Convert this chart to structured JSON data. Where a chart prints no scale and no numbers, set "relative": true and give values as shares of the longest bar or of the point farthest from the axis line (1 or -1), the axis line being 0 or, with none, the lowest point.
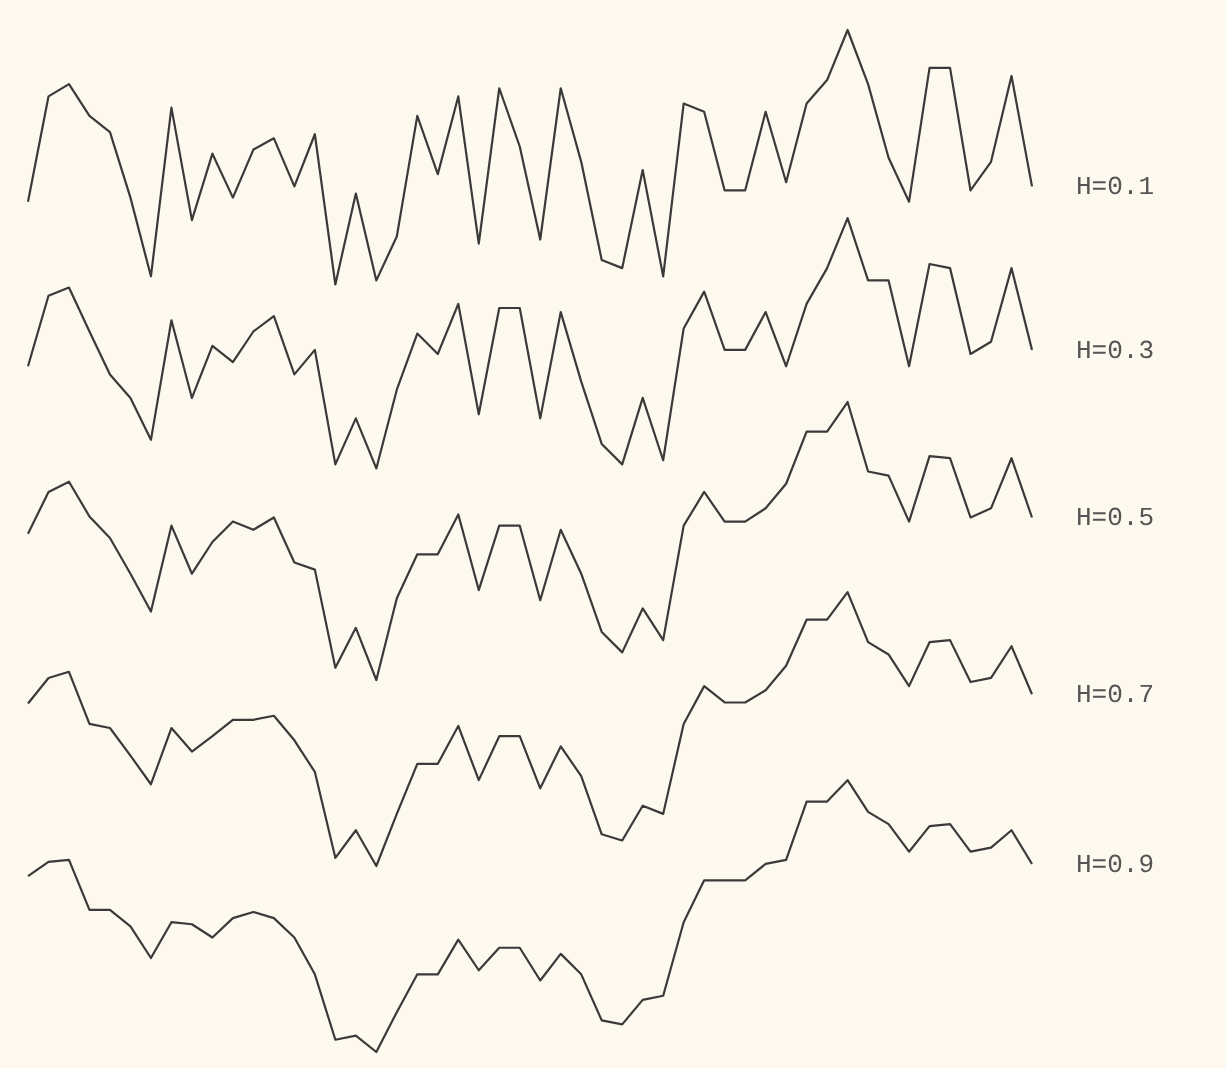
{
  "chart_data": {
    "type": "line",
    "relative": true,
    "tick_labels": false,
    "categories": [
      null,
      null,
      null,
      null,
      null,
      null,
      null,
      null,
      null,
      null,
      null,
      null,
      null,
      null,
      null,
      null,
      null,
      null,
      null,
      null,
      null,
      null,
      null,
      null,
      null,
      null,
      null,
      null,
      null,
      null,
      null,
      null,
      null,
      null,
      null,
      null,
      null,
      null,
      null,
      null,
      null,
      null,
      null,
      null,
      null,
      null,
      null,
      null,
      null,
      null
    ],
    "series": [
      {
        "name": "H=0.1",
        "color": "#3a3a3a",
        "values": [
          0.832,
          0.935,
          0.947,
          0.916,
          0.9,
          0.836,
          0.759,
          0.924,
          0.814,
          0.879,
          0.836,
          0.883,
          0.894,
          0.847,
          0.898,
          0.751,
          0.84,
          0.755,
          0.798,
          0.916,
          0.859,
          0.935,
          0.791,
          0.943,
          0.886,
          0.795,
          0.943,
          0.871,
          0.775,
          0.767,
          0.863,
          0.759,
          0.928,
          0.92,
          0.843,
          0.843,
          0.92,
          0.851,
          0.928,
          0.951,
          1,
          0.947,
          0.875,
          0.832,
          0.963,
          0.963,
          0.843,
          0.871,
          0.955,
          0.847
        ]
      },
      {
        "name": "H=0.3",
        "color": "#3a3a3a",
        "values": [
          0.671,
          0.74,
          0.748,
          0.705,
          0.663,
          0.64,
          0.599,
          0.716,
          0.64,
          0.691,
          0.675,
          0.705,
          0.72,
          0.663,
          0.687,
          0.575,
          0.62,
          0.571,
          0.648,
          0.703,
          0.683,
          0.732,
          0.624,
          0.728,
          0.728,
          0.62,
          0.724,
          0.656,
          0.595,
          0.575,
          0.64,
          0.579,
          0.708,
          0.744,
          0.687,
          0.687,
          0.724,
          0.671,
          0.732,
          0.767,
          0.816,
          0.755,
          0.755,
          0.671,
          0.771,
          0.767,
          0.683,
          0.695,
          0.767,
          0.687
        ]
      },
      {
        "name": "H=0.5",
        "color": "#3a3a3a",
        "values": [
          0.507,
          0.548,
          0.558,
          0.524,
          0.503,
          0.468,
          0.431,
          0.515,
          0.468,
          0.499,
          0.519,
          0.511,
          0.523,
          0.479,
          0.472,
          0.376,
          0.415,
          0.364,
          0.444,
          0.487,
          0.487,
          0.526,
          0.452,
          0.515,
          0.515,
          0.442,
          0.511,
          0.468,
          0.411,
          0.391,
          0.434,
          0.403,
          0.515,
          0.548,
          0.519,
          0.519,
          0.532,
          0.556,
          0.607,
          0.607,
          0.636,
          0.568,
          0.564,
          0.519,
          0.583,
          0.581,
          0.523,
          0.532,
          0.581,
          0.523
        ]
      },
      {
        "name": "H=0.7",
        "color": "#3a3a3a",
        "values": [
          0.341,
          0.366,
          0.372,
          0.321,
          0.317,
          0.29,
          0.262,
          0.317,
          0.294,
          0.309,
          0.325,
          0.325,
          0.329,
          0.305,
          0.274,
          0.19,
          0.217,
          0.182,
          0.233,
          0.282,
          0.282,
          0.319,
          0.266,
          0.309,
          0.309,
          0.258,
          0.299,
          0.27,
          0.213,
          0.207,
          0.241,
          0.233,
          0.321,
          0.358,
          0.342,
          0.342,
          0.354,
          0.378,
          0.423,
          0.423,
          0.45,
          0.401,
          0.389,
          0.358,
          0.401,
          0.403,
          0.362,
          0.366,
          0.397,
          0.35
        ]
      },
      {
        "name": "H=0.9",
        "color": "#3a3a3a",
        "values": [
          0.172,
          0.186,
          0.188,
          0.139,
          0.139,
          0.123,
          0.092,
          0.127,
          0.125,
          0.112,
          0.131,
          0.137,
          0.131,
          0.112,
          0.076,
          0.012,
          0.016,
          0,
          0.039,
          0.076,
          0.076,
          0.11,
          0.08,
          0.102,
          0.102,
          0.07,
          0.096,
          0.076,
          0.031,
          0.027,
          0.051,
          0.055,
          0.127,
          0.168,
          0.168,
          0.168,
          0.184,
          0.188,
          0.245,
          0.245,
          0.266,
          0.235,
          0.223,
          0.196,
          0.221,
          0.223,
          0.196,
          0.2,
          0.217,
          0.184
        ]
      }
    ]
  }
}
